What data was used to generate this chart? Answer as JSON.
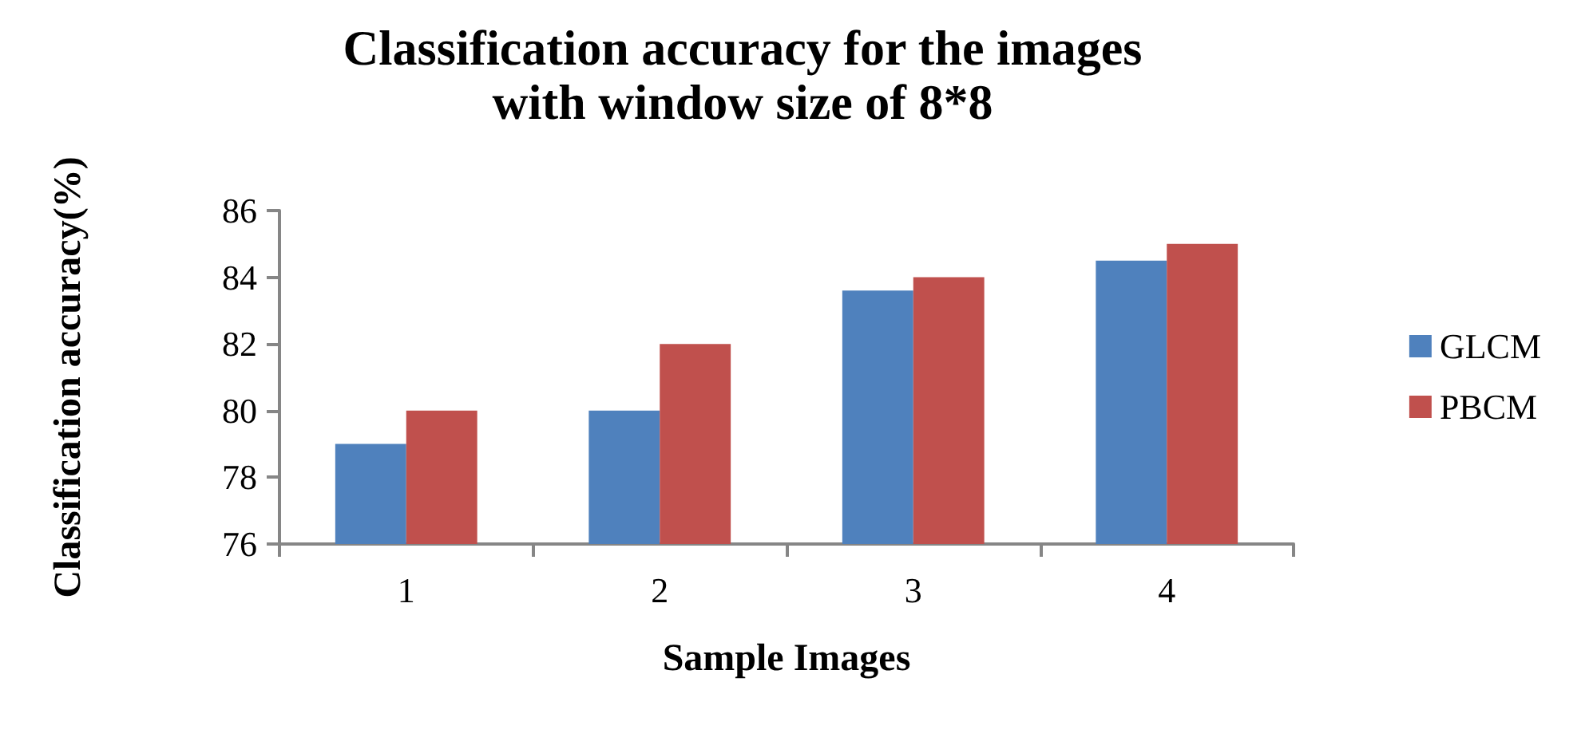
{
  "chart_data": {
    "type": "bar",
    "title": "Classification accuracy for the images\nwith window size of 8*8",
    "xlabel": "Sample Images",
    "ylabel": "Classification accuracy(%)",
    "categories": [
      "1",
      "2",
      "3",
      "4"
    ],
    "series": [
      {
        "name": "GLCM",
        "color": "#4f81bd",
        "values": [
          79,
          80,
          83.6,
          84.5
        ]
      },
      {
        "name": "PBCM",
        "color": "#c0504d",
        "values": [
          80,
          82,
          84,
          85
        ]
      }
    ],
    "ylim": [
      76,
      86
    ],
    "yticks": [
      76,
      78,
      80,
      82,
      84,
      86
    ],
    "grid": false,
    "legend": "right"
  }
}
